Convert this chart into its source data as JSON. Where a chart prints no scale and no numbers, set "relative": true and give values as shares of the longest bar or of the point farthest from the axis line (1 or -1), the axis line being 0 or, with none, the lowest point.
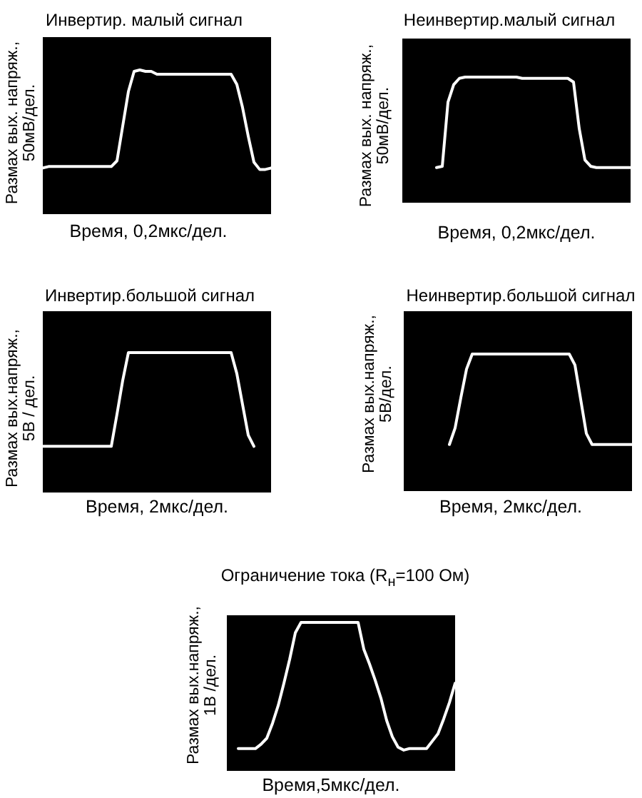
{
  "chart_data": [
    {
      "type": "line",
      "title": "Инвертир. малый сигнал",
      "xlabel": "Время, 0,2мкс/дел.",
      "ylabel": "Размах вых. напряж.,\n50мВ/дел.",
      "relative": true,
      "color": "#ffffff",
      "categories": [
        null,
        null,
        null,
        null,
        null,
        null,
        null,
        null,
        null,
        null,
        null,
        null,
        null,
        null,
        null,
        null,
        null,
        null,
        null,
        null,
        null,
        null,
        null,
        null,
        null,
        null,
        null,
        null,
        null,
        null,
        null,
        null,
        null,
        null,
        null,
        null,
        null,
        null,
        null,
        null,
        null
      ],
      "values": [
        0.32,
        0.33,
        0.33,
        0.33,
        0.33,
        0.33,
        0.33,
        0.33,
        0.33,
        0.33,
        0.33,
        0.33,
        0.33,
        0.37,
        0.61,
        0.85,
        0.99,
        1.0,
        0.99,
        0.99,
        0.97,
        0.97,
        0.97,
        0.97,
        0.97,
        0.97,
        0.97,
        0.97,
        0.97,
        0.97,
        0.97,
        0.97,
        0.97,
        0.97,
        0.9,
        0.74,
        0.54,
        0.36,
        0.31,
        0.31,
        0.32
      ]
    },
    {
      "type": "line",
      "title": "Неинвертир.малый сигнал",
      "xlabel": "Время, 0,2мкс/дел.",
      "ylabel": "Размах вых. напряж.,\n50мВ/дел.",
      "relative": true,
      "color": "#ffffff",
      "categories": [
        null,
        null,
        null,
        null,
        null,
        null,
        null,
        null,
        null,
        null,
        null,
        null,
        null,
        null,
        null,
        null,
        null,
        null,
        null,
        null,
        null,
        null,
        null,
        null,
        null,
        null,
        null,
        null,
        null,
        null,
        null,
        null,
        null,
        null,
        null
      ],
      "values": [
        0.28,
        0.29,
        0.8,
        0.94,
        0.99,
        1.0,
        1.0,
        1.0,
        1.0,
        1.0,
        1.0,
        1.0,
        1.0,
        1.0,
        1.0,
        0.99,
        0.99,
        0.99,
        0.99,
        0.99,
        0.99,
        0.99,
        0.99,
        0.99,
        0.96,
        0.59,
        0.34,
        0.29,
        0.28,
        0.28,
        0.28,
        0.28,
        0.28,
        0.28,
        0.28
      ]
    },
    {
      "type": "line",
      "title": "Инвертир.большой сигнал",
      "xlabel": "Время, 2мкс/дел.",
      "ylabel": "Размах вых.напряж.,\n5В / дел.",
      "relative": true,
      "color": "#ffffff",
      "categories": [
        null,
        null,
        null,
        null,
        null,
        null,
        null,
        null,
        null,
        null,
        null,
        null,
        null,
        null,
        null,
        null,
        null,
        null,
        null,
        null,
        null,
        null,
        null,
        null,
        null,
        null,
        null,
        null,
        null,
        null,
        null,
        null,
        null,
        null,
        null,
        null,
        null,
        null
      ],
      "values": [
        0.33,
        0.33,
        0.33,
        0.33,
        0.33,
        0.33,
        0.33,
        0.33,
        0.33,
        0.33,
        0.33,
        0.33,
        0.33,
        0.56,
        0.8,
        1.0,
        1.0,
        1.0,
        1.0,
        1.0,
        1.0,
        1.0,
        1.0,
        1.0,
        1.0,
        1.0,
        1.0,
        1.0,
        1.0,
        1.0,
        1.0,
        1.0,
        1.0,
        1.0,
        0.85,
        0.63,
        0.41,
        0.33
      ]
    },
    {
      "type": "line",
      "title": "Неинвертир.большой сигнал",
      "xlabel": "Время, 2мкс/дел.",
      "ylabel": "Размах вых.напряж.,\n5В/дел.",
      "relative": true,
      "color": "#ffffff",
      "categories": [
        null,
        null,
        null,
        null,
        null,
        null,
        null,
        null,
        null,
        null,
        null,
        null,
        null,
        null,
        null,
        null,
        null,
        null,
        null,
        null,
        null,
        null,
        null,
        null,
        null,
        null,
        null,
        null,
        null,
        null,
        null,
        null,
        null
      ],
      "values": [
        0.34,
        0.46,
        0.68,
        0.89,
        1.0,
        1.0,
        1.0,
        1.0,
        1.0,
        1.0,
        1.0,
        1.0,
        1.0,
        1.0,
        1.0,
        1.0,
        1.0,
        1.0,
        1.0,
        1.0,
        1.0,
        1.0,
        0.92,
        0.67,
        0.42,
        0.34,
        0.34,
        0.34,
        0.34,
        0.34,
        0.34,
        0.34,
        0.34
      ]
    },
    {
      "type": "line",
      "title": "Ограничение тока (R$_{н}$=100 Ом)",
      "xlabel": "Время,5мкс/дел.",
      "ylabel": "Размах вых.напряж.,\n1В /дел.",
      "relative": true,
      "color": "#ffffff",
      "categories": [
        null,
        null,
        null,
        null,
        null,
        null,
        null,
        null,
        null,
        null,
        null,
        null,
        null,
        null,
        null,
        null,
        null,
        null,
        null,
        null,
        null,
        null,
        null,
        null,
        null,
        null,
        null,
        null,
        null,
        null,
        null,
        null,
        null,
        null,
        null,
        null,
        null,
        null,
        null
      ],
      "values": [
        0.15,
        0.15,
        0.15,
        0.15,
        0.18,
        0.22,
        0.32,
        0.44,
        0.59,
        0.75,
        0.93,
        1.0,
        1.0,
        1.0,
        1.0,
        1.0,
        1.0,
        1.0,
        1.0,
        1.0,
        1.0,
        1.0,
        0.82,
        0.72,
        0.61,
        0.49,
        0.34,
        0.23,
        0.16,
        0.14,
        0.15,
        0.15,
        0.15,
        0.15,
        0.2,
        0.25,
        0.35,
        0.46,
        0.59
      ]
    }
  ]
}
